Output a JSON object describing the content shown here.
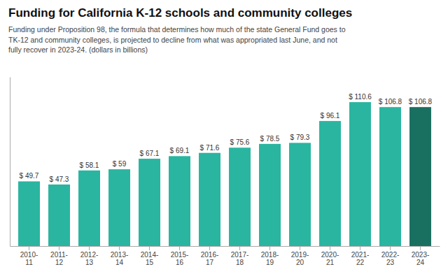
{
  "chart_data": {
    "type": "bar",
    "title": "Funding for California K-12 schools and community colleges",
    "subtitle": "Funding under Proposition 98, the formula that determines how much of the state General Fund goes to\nTK-12 and community colleges, is projected to decline from what was appropriated last June, and not\nfully recover in 2023-24. (dollars in billions)",
    "categories": [
      "2010-\n11",
      "2011-\n12",
      "2012-\n13",
      "2013-\n14",
      "2014-\n15",
      "2015-\n16",
      "2016-\n17",
      "2017-\n18",
      "2018-\n19",
      "2019-\n20",
      "2020-\n21",
      "2021-\n22",
      "2022-\n23",
      "2023-\n24"
    ],
    "values": [
      49.7,
      47.3,
      58.1,
      59.0,
      67.1,
      69.1,
      71.6,
      75.6,
      78.5,
      79.3,
      96.1,
      110.6,
      106.8,
      106.8
    ],
    "value_labels": [
      "$ 49.7",
      "$ 47.3",
      "$ 58.1",
      "$ 59",
      "$ 67.1",
      "$ 69.1",
      "$ 71.6",
      "$ 75.6",
      "$ 78.5",
      "$ 79.3",
      "$ 96.1",
      "$ 110.6",
      "$ 106.8",
      "$ 106.8"
    ],
    "colors": [
      "#2ab5a0",
      "#2ab5a0",
      "#2ab5a0",
      "#2ab5a0",
      "#2ab5a0",
      "#2ab5a0",
      "#2ab5a0",
      "#2ab5a0",
      "#2ab5a0",
      "#2ab5a0",
      "#2ab5a0",
      "#2ab5a0",
      "#2ab5a0",
      "#1a7060"
    ],
    "ylim": [
      0,
      130
    ],
    "tick_labels": "x",
    "grid": false
  }
}
